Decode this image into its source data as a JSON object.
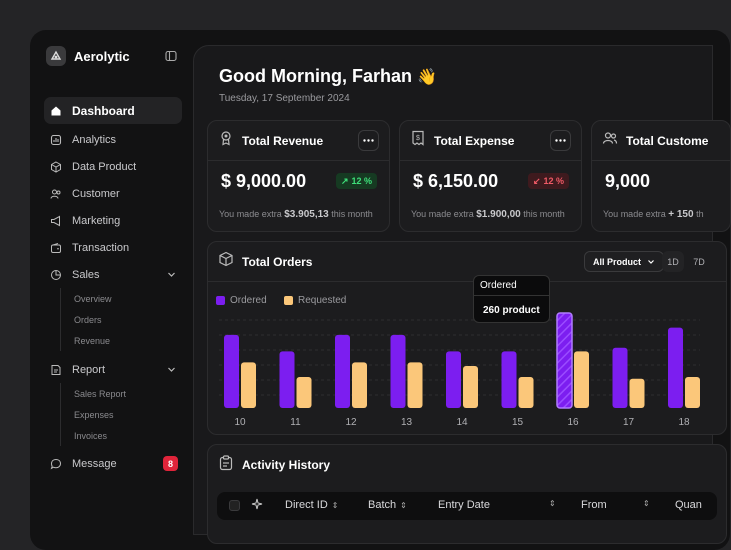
{
  "app": {
    "name": "Aerolytic"
  },
  "colors": {
    "ordered": "#7c1ef0",
    "requested": "#fbc77a",
    "up": "#3ee07a",
    "down": "#f05a66",
    "badge": "#e0243a"
  },
  "sidebar": {
    "items": [
      {
        "label": "Dashboard",
        "icon": "home-icon",
        "active": true
      },
      {
        "label": "Analytics",
        "icon": "chart-icon"
      },
      {
        "label": "Data Product",
        "icon": "box-icon"
      },
      {
        "label": "Customer",
        "icon": "users-icon"
      },
      {
        "label": "Marketing",
        "icon": "megaphone-icon"
      },
      {
        "label": "Transaction",
        "icon": "wallet-icon"
      },
      {
        "label": "Sales",
        "icon": "pie-icon",
        "expanded": true,
        "children": [
          "Overview",
          "Orders",
          "Revenue"
        ]
      },
      {
        "label": "Report",
        "icon": "report-icon",
        "expanded": true,
        "children": [
          "Sales Report",
          "Expenses",
          "Invoices"
        ]
      },
      {
        "label": "Message",
        "icon": "message-icon",
        "badge": "8"
      }
    ]
  },
  "header": {
    "greeting": "Good Morning, Farhan",
    "emoji": "👋",
    "date": "Tuesday, 17 September 2024"
  },
  "stats": [
    {
      "title": "Total Revenue",
      "value": "$ 9,000.00",
      "trend": "12 %",
      "direction": "up",
      "note_prefix": "You made extra",
      "note_amount": "$3.905,13",
      "note_suffix": "this month"
    },
    {
      "title": "Total Expense",
      "value": "$ 6,150.00",
      "trend": "12 %",
      "direction": "down",
      "note_prefix": "You made extra",
      "note_amount": "$1.900,00",
      "note_suffix": "this month"
    },
    {
      "title": "Total Custome",
      "value": "9,000",
      "trend": "",
      "direction": "",
      "note_prefix": "You made extra",
      "note_amount": "+ 150",
      "note_suffix": "th"
    }
  ],
  "orders": {
    "title": "Total Orders",
    "filter": "All Product",
    "periods": [
      "1D",
      "7D"
    ],
    "legend": [
      "Ordered",
      "Requested"
    ],
    "tooltip": {
      "label": "Ordered",
      "value": "260 product"
    }
  },
  "chart_data": {
    "type": "bar",
    "categories": [
      "10",
      "11",
      "12",
      "13",
      "14",
      "15",
      "16",
      "17",
      "18"
    ],
    "series": [
      {
        "name": "Ordered",
        "values": [
          200,
          155,
          200,
          200,
          155,
          155,
          260,
          165,
          220
        ]
      },
      {
        "name": "Requested",
        "values": [
          125,
          85,
          125,
          125,
          115,
          85,
          155,
          80,
          85
        ]
      }
    ],
    "highlight_index": 6,
    "grid": true
  },
  "activity": {
    "title": "Activity History",
    "columns": [
      "Direct ID",
      "Batch",
      "Entry Date",
      "From",
      "Quan"
    ]
  }
}
